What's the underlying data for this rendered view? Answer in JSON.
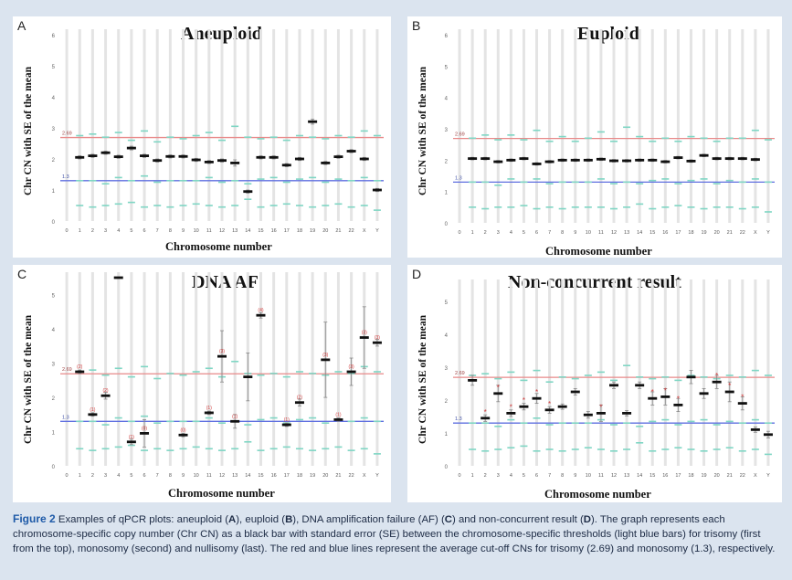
{
  "chart_data": [
    {
      "type": "error-bar",
      "letter": "A",
      "title": "Aneuploid",
      "ylabel": "Chr CN with SE of the mean",
      "xlabel": "Chromosome number",
      "ylim": [
        0,
        6
      ],
      "yticks": [
        0,
        1,
        2,
        3,
        4,
        5,
        6
      ],
      "trisomy_cutoff": 2.69,
      "monosomy_cutoff": 1.3,
      "trisomy_label": "2.69",
      "monosomy_label": "1.3",
      "categories": [
        "0",
        "1",
        "2",
        "3",
        "4",
        "5",
        "6",
        "7",
        "8",
        "9",
        "10",
        "11",
        "12",
        "13",
        "14",
        "15",
        "16",
        "17",
        "18",
        "19",
        "20",
        "21",
        "22",
        "X",
        "Y"
      ],
      "values": [
        null,
        2.05,
        2.1,
        2.2,
        2.07,
        2.35,
        2.1,
        1.95,
        2.08,
        2.08,
        1.97,
        1.9,
        1.95,
        1.87,
        0.95,
        2.05,
        2.05,
        1.8,
        2.0,
        3.2,
        1.87,
        2.07,
        2.25,
        2.0,
        1.0
      ],
      "se": [
        0,
        0.05,
        0.05,
        0.05,
        0.05,
        0.06,
        0.05,
        0.05,
        0.05,
        0.05,
        0.05,
        0.05,
        0.05,
        0.1,
        0.05,
        0.05,
        0.05,
        0.05,
        0.05,
        0.08,
        0.05,
        0.05,
        0.05,
        0.05,
        0.05
      ],
      "thresholds": {
        "trisomy": [
          null,
          2.75,
          2.8,
          2.7,
          2.85,
          2.6,
          2.9,
          2.55,
          2.7,
          2.65,
          2.75,
          2.85,
          2.6,
          3.05,
          2.7,
          2.65,
          2.7,
          2.6,
          2.75,
          2.7,
          2.65,
          2.75,
          2.7,
          2.9,
          2.75
        ],
        "monosomy": [
          null,
          1.3,
          1.3,
          1.2,
          1.4,
          1.3,
          1.45,
          1.25,
          1.3,
          1.3,
          1.3,
          1.4,
          1.25,
          1.3,
          1.2,
          1.35,
          1.4,
          1.25,
          1.35,
          1.4,
          1.25,
          1.35,
          1.3,
          1.4,
          1.3
        ],
        "nullisomy": [
          null,
          0.5,
          0.45,
          0.5,
          0.55,
          0.6,
          0.45,
          0.5,
          0.45,
          0.5,
          0.55,
          0.5,
          0.45,
          0.5,
          0.7,
          0.45,
          0.5,
          0.55,
          0.5,
          0.45,
          0.5,
          0.55,
          0.45,
          0.5,
          0.35
        ]
      },
      "markers": [],
      "grid": true
    },
    {
      "type": "error-bar",
      "letter": "B",
      "title": "Euploid",
      "ylabel": "Chr CN with SE of the mean",
      "xlabel": "Chromosome number",
      "ylim": [
        0,
        6
      ],
      "yticks": [
        0,
        1,
        2,
        3,
        4,
        5,
        6
      ],
      "trisomy_cutoff": 2.69,
      "monosomy_cutoff": 1.3,
      "trisomy_label": "2.69",
      "monosomy_label": "1.3",
      "categories": [
        "0",
        "1",
        "2",
        "3",
        "4",
        "5",
        "6",
        "7",
        "8",
        "9",
        "10",
        "11",
        "12",
        "13",
        "14",
        "15",
        "16",
        "17",
        "18",
        "19",
        "20",
        "21",
        "22",
        "X",
        "Y"
      ],
      "values": [
        null,
        2.05,
        2.05,
        1.95,
        2.0,
        2.05,
        1.88,
        1.95,
        2.0,
        2.0,
        2.0,
        2.03,
        1.98,
        1.98,
        2.0,
        2.0,
        1.95,
        2.08,
        1.97,
        2.15,
        2.05,
        2.05,
        2.05,
        2.02,
        null
      ],
      "se": [
        0,
        0.04,
        0.04,
        0.04,
        0.04,
        0.04,
        0.04,
        0.04,
        0.04,
        0.04,
        0.04,
        0.04,
        0.04,
        0.04,
        0.04,
        0.04,
        0.04,
        0.04,
        0.04,
        0.04,
        0.04,
        0.04,
        0.04,
        0.04,
        0
      ],
      "thresholds": {
        "trisomy": [
          null,
          2.7,
          2.8,
          2.65,
          2.8,
          2.65,
          2.95,
          2.6,
          2.75,
          2.6,
          2.7,
          2.9,
          2.6,
          3.05,
          2.75,
          2.6,
          2.7,
          2.6,
          2.75,
          2.7,
          2.6,
          2.7,
          2.7,
          2.95,
          2.65
        ],
        "monosomy": [
          null,
          1.3,
          1.3,
          1.2,
          1.4,
          1.3,
          1.4,
          1.25,
          1.3,
          1.3,
          1.3,
          1.4,
          1.25,
          1.3,
          1.25,
          1.35,
          1.4,
          1.25,
          1.35,
          1.4,
          1.25,
          1.35,
          1.3,
          1.4,
          1.3
        ],
        "nullisomy": [
          null,
          0.5,
          0.45,
          0.5,
          0.5,
          0.55,
          0.45,
          0.5,
          0.45,
          0.5,
          0.5,
          0.5,
          0.45,
          0.5,
          0.6,
          0.45,
          0.5,
          0.55,
          0.5,
          0.45,
          0.5,
          0.5,
          0.45,
          0.5,
          0.35
        ]
      },
      "markers": [],
      "grid": true
    },
    {
      "type": "error-bar",
      "letter": "C",
      "title": "DNA AF",
      "ylabel": "Chr CN with SE of the mean",
      "xlabel": "Chromosome number",
      "ylim": [
        0,
        5.5
      ],
      "yticks": [
        0,
        1,
        2,
        3,
        4,
        5
      ],
      "trisomy_cutoff": 2.69,
      "monosomy_cutoff": 1.3,
      "trisomy_label": "2.69",
      "monosomy_label": "1.3",
      "categories": [
        "0",
        "1",
        "2",
        "3",
        "4",
        "5",
        "6",
        "7",
        "8",
        "9",
        "10",
        "11",
        "12",
        "13",
        "14",
        "15",
        "16",
        "17",
        "18",
        "19",
        "20",
        "21",
        "22",
        "X",
        "Y"
      ],
      "values": [
        null,
        2.75,
        1.5,
        2.05,
        5.5,
        0.7,
        0.95,
        null,
        null,
        0.9,
        null,
        1.55,
        3.2,
        1.3,
        2.6,
        4.4,
        null,
        1.2,
        1.85,
        null,
        3.1,
        1.35,
        2.75,
        3.75,
        3.6
      ],
      "se": [
        0,
        0.05,
        0.05,
        0.1,
        0,
        0.08,
        0.4,
        0,
        0,
        0.05,
        0,
        0.05,
        0.75,
        0.2,
        0.7,
        0.08,
        0,
        0.05,
        0.1,
        0,
        1.1,
        0.05,
        0.4,
        0.9,
        0.1
      ],
      "thresholds": {
        "trisomy": [
          null,
          2.75,
          2.8,
          2.65,
          2.85,
          2.6,
          2.9,
          2.55,
          2.7,
          2.65,
          2.75,
          2.85,
          2.6,
          3.05,
          2.7,
          2.65,
          2.7,
          2.6,
          2.75,
          2.7,
          2.65,
          2.75,
          2.7,
          2.9,
          2.75
        ],
        "monosomy": [
          null,
          1.3,
          1.3,
          1.2,
          1.4,
          1.3,
          1.45,
          1.25,
          1.3,
          1.3,
          1.3,
          1.4,
          1.25,
          1.3,
          1.2,
          1.35,
          1.4,
          1.25,
          1.35,
          1.4,
          1.25,
          1.35,
          1.3,
          1.4,
          1.3
        ],
        "nullisomy": [
          null,
          0.5,
          0.45,
          0.5,
          0.55,
          0.6,
          0.45,
          0.5,
          0.45,
          0.5,
          0.55,
          0.5,
          0.45,
          0.5,
          0.7,
          0.45,
          0.5,
          0.55,
          0.5,
          0.45,
          0.5,
          0.55,
          0.45,
          0.5,
          0.35
        ]
      },
      "markers": [
        {
          "i": 1,
          "label": "(2)",
          "above": true
        },
        {
          "i": 2,
          "label": "(1)",
          "above": true
        },
        {
          "i": 3,
          "label": "(2)",
          "above": true
        },
        {
          "i": 5,
          "label": "(1)",
          "above": true
        },
        {
          "i": 6,
          "label": "(0)",
          "above": true
        },
        {
          "i": 9,
          "label": "(0)",
          "above": true
        },
        {
          "i": 11,
          "label": "(1)",
          "above": true
        },
        {
          "i": 12,
          "label": "(3)",
          "above": true
        },
        {
          "i": 13,
          "label": "(1)",
          "above": true
        },
        {
          "i": 15,
          "label": "(4)",
          "above": true
        },
        {
          "i": 17,
          "label": "(1)",
          "above": true
        },
        {
          "i": 18,
          "label": "(2)",
          "above": true
        },
        {
          "i": 20,
          "label": "(3)",
          "above": true
        },
        {
          "i": 21,
          "label": "(1)",
          "above": true
        },
        {
          "i": 22,
          "label": "(3)",
          "above": true
        },
        {
          "i": 23,
          "label": "(3)",
          "above": true
        },
        {
          "i": 24,
          "label": "(3)",
          "above": true
        }
      ],
      "grid": true
    },
    {
      "type": "error-bar",
      "letter": "D",
      "title": "Non-concurrent result",
      "ylabel": "Chr CN with SE of the mean",
      "xlabel": "Chromosome number",
      "ylim": [
        0,
        5.5
      ],
      "yticks": [
        0,
        1,
        2,
        3,
        4,
        5
      ],
      "trisomy_cutoff": 2.69,
      "monosomy_cutoff": 1.3,
      "trisomy_label": "2.69",
      "monosomy_label": "1.3",
      "categories": [
        "0",
        "1",
        "2",
        "3",
        "4",
        "5",
        "6",
        "7",
        "8",
        "9",
        "10",
        "11",
        "12",
        "13",
        "14",
        "15",
        "16",
        "17",
        "18",
        "19",
        "20",
        "21",
        "22",
        "X",
        "Y"
      ],
      "values": [
        null,
        2.6,
        1.45,
        2.2,
        1.6,
        1.8,
        2.05,
        1.7,
        1.8,
        2.25,
        1.55,
        1.6,
        2.45,
        1.6,
        2.45,
        2.05,
        2.1,
        1.85,
        2.7,
        2.2,
        2.55,
        2.25,
        1.9,
        1.1,
        0.95
      ],
      "se": [
        0,
        0.15,
        0.1,
        0.25,
        0.1,
        0.1,
        0.15,
        0.1,
        0.08,
        0.1,
        0.1,
        0.25,
        0.1,
        0.08,
        0.1,
        0.2,
        0.25,
        0.2,
        0.2,
        0.15,
        0.2,
        0.3,
        0.2,
        0.08,
        0.1
      ],
      "thresholds": {
        "trisomy": [
          null,
          2.75,
          2.8,
          2.65,
          2.85,
          2.6,
          2.9,
          2.55,
          2.7,
          2.65,
          2.75,
          2.85,
          2.6,
          3.05,
          2.7,
          2.65,
          2.7,
          2.6,
          2.75,
          2.7,
          2.65,
          2.75,
          2.7,
          2.9,
          2.75
        ],
        "monosomy": [
          null,
          1.3,
          1.3,
          1.2,
          1.4,
          1.3,
          1.45,
          1.25,
          1.3,
          1.3,
          1.3,
          1.4,
          1.25,
          1.3,
          1.2,
          1.35,
          1.4,
          1.25,
          1.35,
          1.4,
          1.25,
          1.35,
          1.3,
          1.4,
          1.3
        ],
        "nullisomy": [
          null,
          0.5,
          0.45,
          0.5,
          0.55,
          0.6,
          0.45,
          0.5,
          0.45,
          0.5,
          0.55,
          0.5,
          0.45,
          0.5,
          0.7,
          0.45,
          0.5,
          0.55,
          0.5,
          0.45,
          0.5,
          0.55,
          0.45,
          0.5,
          0.35
        ]
      },
      "markers": [
        {
          "i": 2,
          "label": "*",
          "above": true
        },
        {
          "i": 3,
          "label": "*",
          "above": true
        },
        {
          "i": 4,
          "label": "*",
          "above": true
        },
        {
          "i": 5,
          "label": "*",
          "above": true
        },
        {
          "i": 6,
          "label": "*",
          "above": true
        },
        {
          "i": 7,
          "label": "*",
          "above": true
        },
        {
          "i": 11,
          "label": "*",
          "above": true
        },
        {
          "i": 15,
          "label": "*",
          "above": true
        },
        {
          "i": 16,
          "label": "*",
          "above": true
        },
        {
          "i": 17,
          "label": "*",
          "above": true
        },
        {
          "i": 20,
          "label": "*",
          "above": true
        },
        {
          "i": 21,
          "label": "*",
          "above": true
        },
        {
          "i": 22,
          "label": "*",
          "above": true
        }
      ],
      "grid": true
    }
  ],
  "colors": {
    "cutoff_trisomy": "#e88a8a",
    "cutoff_monosomy": "#5f6fe0",
    "threshold_bar": "#7fd6c4",
    "cn_bar": "#111111",
    "error_bar": "#888888",
    "grid": "#e4e4e4",
    "marker": "#d33a3a",
    "figure_label": "#1e5aa8",
    "caption_text": "#1d2b45"
  },
  "caption": {
    "figure_label": "Figure 2",
    "part1": " Examples of qPCR plots: aneuploid (",
    "A": "A",
    "part2": "), euploid (",
    "B": "B",
    "part3": "), DNA amplification failure (AF) (",
    "C": "C",
    "part4": ") and non-concurrent result (",
    "D": "D",
    "part5": "). The graph represents each chromosome-specific copy number (Chr CN) as a black bar with standard error (SE) between the chromosome-specific thresholds (light blue bars) for trisomy (first from the top), monosomy (second) and nullisomy (last). The red and blue lines represent the average cut-off CNs for trisomy (2.69) and monosomy (1.3), respectively."
  }
}
